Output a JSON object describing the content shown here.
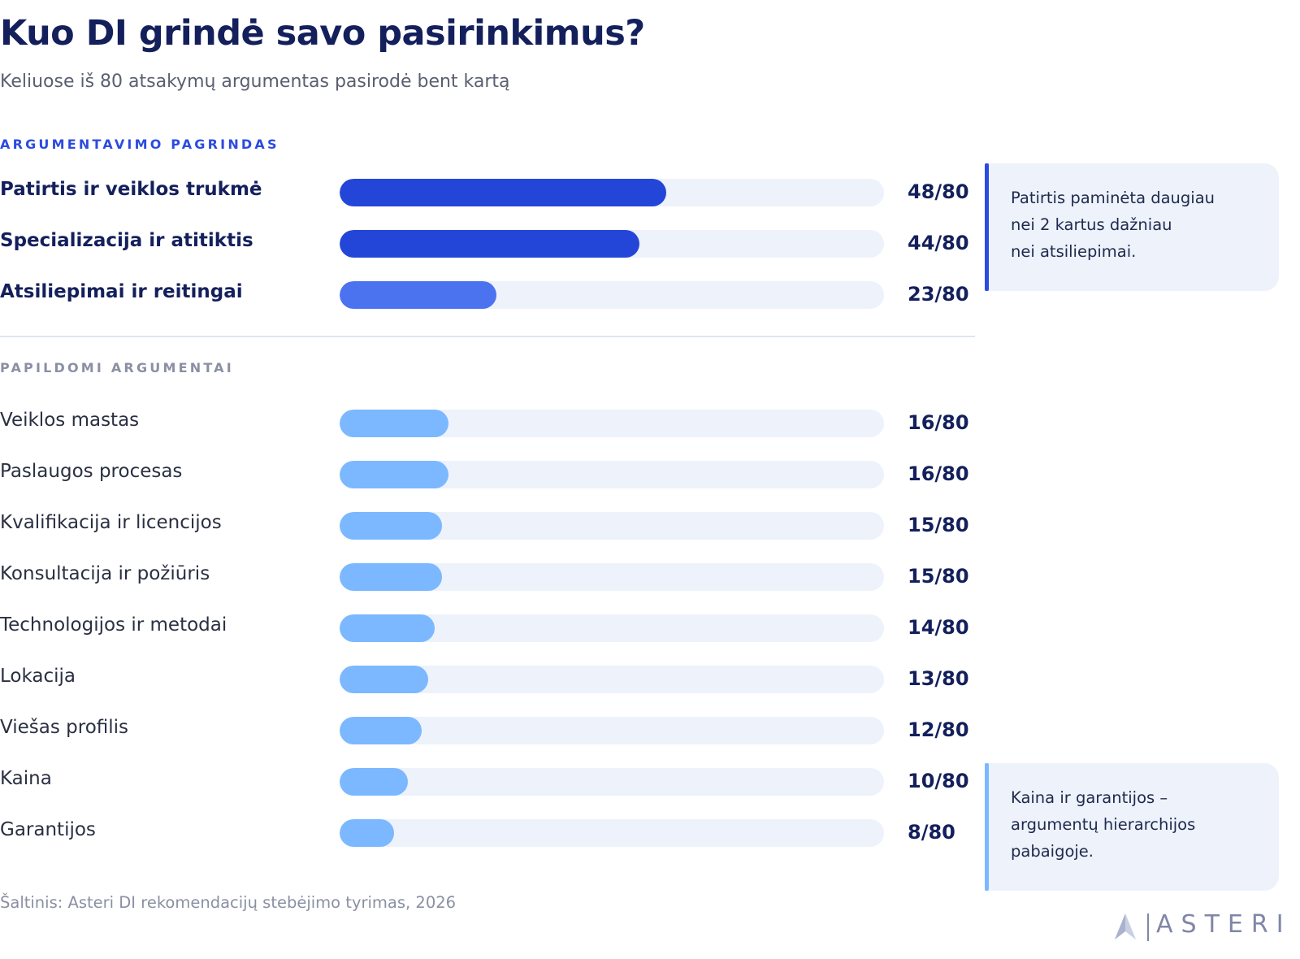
{
  "title": "Kuo DI grindė savo pasirinkimus?",
  "subtitle": "Keliuose iš 80 atsakymų argumentas pasirodė bent kartą",
  "sections": {
    "primary_label": "ARGUMENTAVIMO PAGRINDAS",
    "secondary_label": "PAPILDOMI ARGUMENTAI"
  },
  "colors": {
    "primary_strong": "#2446d8",
    "primary_light": "#4c73ef",
    "secondary": "#7bb8ff",
    "track": "#edf2fb"
  },
  "chart_data": {
    "type": "bar",
    "orientation": "horizontal",
    "max": 80,
    "groups": [
      {
        "name": "ARGUMENTAVIMO PAGRINDAS",
        "rows": [
          {
            "label": "Patirtis ir veiklos trukmė",
            "value": 48,
            "display": "48/80"
          },
          {
            "label": "Specializacija ir atitiktis",
            "value": 44,
            "display": "44/80"
          },
          {
            "label": "Atsiliepimai ir reitingai",
            "value": 23,
            "display": "23/80"
          }
        ]
      },
      {
        "name": "PAPILDOMI ARGUMENTAI",
        "rows": [
          {
            "label": "Veiklos mastas",
            "value": 16,
            "display": "16/80"
          },
          {
            "label": "Paslaugos procesas",
            "value": 16,
            "display": "16/80"
          },
          {
            "label": "Kvalifikacija ir licencijos",
            "value": 15,
            "display": "15/80"
          },
          {
            "label": "Konsultacija ir požiūris",
            "value": 15,
            "display": "15/80"
          },
          {
            "label": "Technologijos ir metodai",
            "value": 14,
            "display": "14/80"
          },
          {
            "label": "Lokacija",
            "value": 13,
            "display": "13/80"
          },
          {
            "label": "Viešas profilis",
            "value": 12,
            "display": "12/80"
          },
          {
            "label": "Kaina",
            "value": 10,
            "display": "10/80"
          },
          {
            "label": "Garantijos",
            "value": 8,
            "display": "8/80"
          }
        ]
      }
    ]
  },
  "notes": [
    {
      "lines": [
        "Patirtis paminėta daugiau",
        "nei 2 kartus dažniau",
        "nei atsiliepimai."
      ]
    },
    {
      "lines": [
        "Kaina ir garantijos –",
        "argumentų hierarchijos",
        "pabaigoje."
      ]
    }
  ],
  "source": "Šaltinis: Asteri DI rekomendacijų stebėjimo tyrimas, 2026",
  "logo": {
    "text": "ASTERI",
    "icon": "asteri-star-icon"
  }
}
